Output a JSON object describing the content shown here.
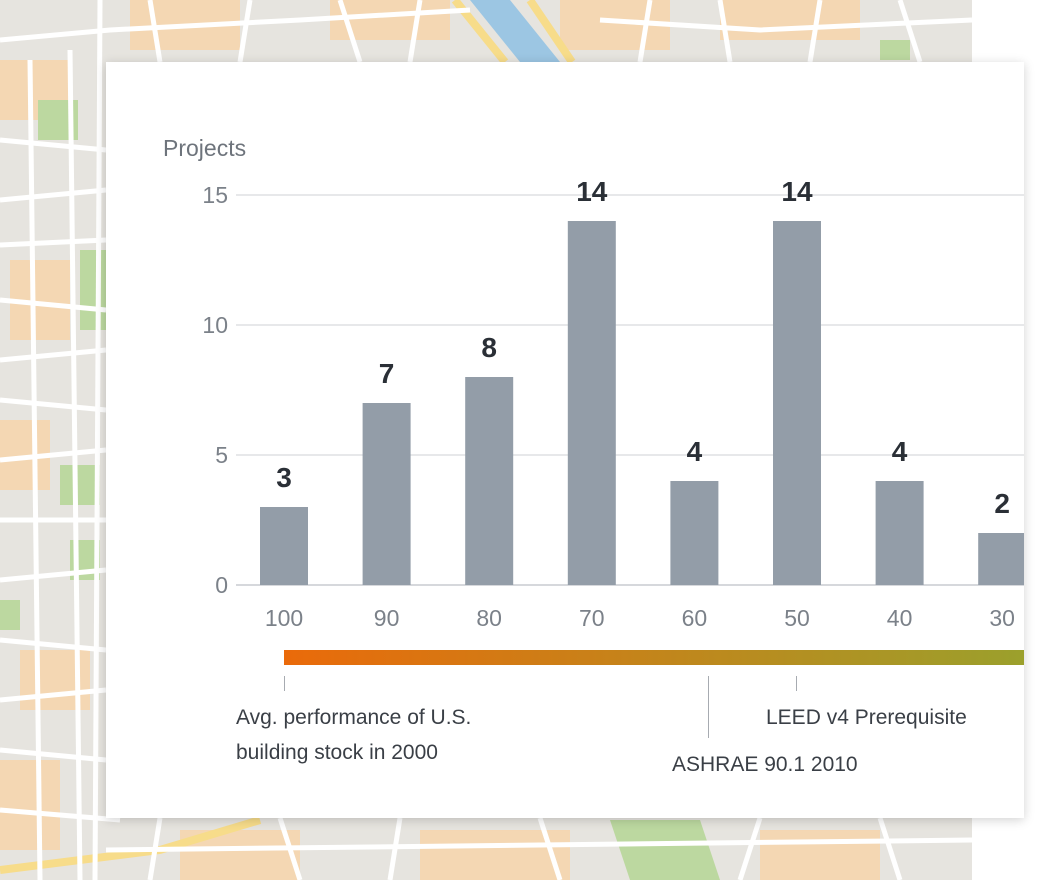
{
  "chart_data": {
    "type": "bar",
    "ylabel": "Projects",
    "categories": [
      "100",
      "90",
      "80",
      "70",
      "60",
      "50",
      "40",
      "30"
    ],
    "values": [
      3,
      7,
      8,
      14,
      4,
      14,
      4,
      2
    ],
    "ylim": [
      0,
      15
    ],
    "yticks": [
      "0",
      "5",
      "10",
      "15"
    ],
    "grid": true,
    "bar_color": "#939da8",
    "gradient_colors": [
      "#ea6a0a",
      "#9ba02c"
    ],
    "annotations": [
      {
        "text_lines": [
          "Avg. performance of U.S.",
          "building stock in 2000"
        ],
        "at": 100
      },
      {
        "text_lines": [
          "ASHRAE 90.1 2010"
        ],
        "at": 60
      },
      {
        "text_lines": [
          "LEED v4 Prerequisite"
        ],
        "at": 50
      }
    ]
  },
  "colors": {
    "map_land": "#e6e4df",
    "map_road": "#ffffff",
    "map_park": "#bcd8a0",
    "map_block": "#f4d7b3",
    "map_water": "#9cc6e3",
    "map_highway": "#f7dc8a"
  }
}
